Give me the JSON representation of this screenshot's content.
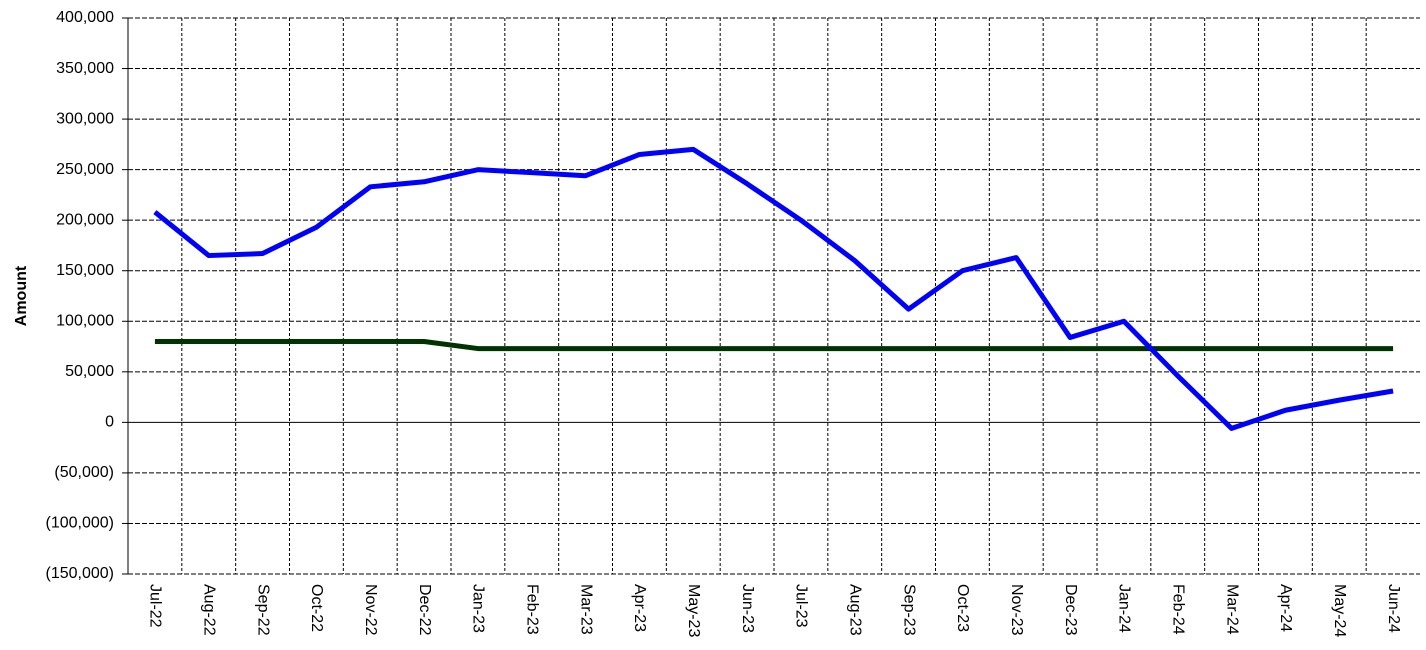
{
  "chart_data": {
    "type": "line",
    "y_label": "Amount",
    "categories": [
      "Jul-22",
      "Aug-22",
      "Sep-22",
      "Oct-22",
      "Nov-22",
      "Dec-22",
      "Jan-23",
      "Feb-23",
      "Mar-23",
      "Apr-23",
      "May-23",
      "Jun-23",
      "Jul-23",
      "Aug-23",
      "Sep-23",
      "Oct-23",
      "Nov-23",
      "Dec-23",
      "Jan-24",
      "Feb-24",
      "Mar-24",
      "Apr-24",
      "May-24",
      "Jun-24"
    ],
    "series": [
      {
        "color": "#0000ff",
        "values": [
          208000,
          165000,
          167000,
          193000,
          233000,
          238000,
          250000,
          247000,
          244000,
          265000,
          270000,
          236000,
          200000,
          160000,
          112000,
          150000,
          163000,
          84000,
          100000,
          46000,
          -6000,
          12000,
          22000,
          31000
        ]
      },
      {
        "color": "#003300",
        "values": [
          80000,
          80000,
          80000,
          80000,
          80000,
          80000,
          73000,
          73000,
          73000,
          73000,
          73000,
          73000,
          73000,
          73000,
          73000,
          73000,
          73000,
          73000,
          73000,
          73000,
          73000,
          73000,
          73000,
          73000
        ]
      }
    ],
    "ylim": [
      -150000,
      400000
    ],
    "yticks": [
      {
        "value": -150000,
        "label": "(150,000)"
      },
      {
        "value": -100000,
        "label": "(100,000)"
      },
      {
        "value": -50000,
        "label": "(50,000)"
      },
      0,
      {
        "value": 50000,
        "label": "50,000"
      },
      {
        "value": 100000,
        "label": "100,000"
      },
      {
        "value": 150000,
        "label": "150,000"
      },
      {
        "value": 200000,
        "label": "200,000"
      },
      {
        "value": 250000,
        "label": "250,000"
      },
      {
        "value": 300000,
        "label": "300,000"
      },
      {
        "value": 350000,
        "label": "350,000"
      },
      {
        "value": 400000,
        "label": "400,000"
      }
    ],
    "negative_tick_color": "#ff0000",
    "grid": true
  }
}
